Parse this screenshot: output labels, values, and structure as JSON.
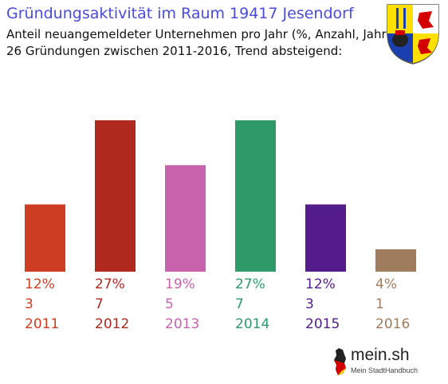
{
  "header": {
    "title": "Gründungsaktivität im Raum 19417 Jesendorf",
    "subtitle_line1": "Anteil neuangemeldeter Unternehmen pro Jahr (%, Anzahl, Jahr)",
    "subtitle_line2": "26 Gründungen zwischen 2011-2016, Trend absteigend:"
  },
  "crest": {
    "icon": "mecklenburg-vorpommern-coat-of-arms-icon",
    "colors": [
      "#1a3fae",
      "#ffe000",
      "#ffffff",
      "#d40000"
    ]
  },
  "chart_data": {
    "type": "bar",
    "categories": [
      "2011",
      "2012",
      "2013",
      "2014",
      "2015",
      "2016"
    ],
    "values": [
      12,
      27,
      19,
      27,
      12,
      4
    ],
    "percent_labels": [
      "12%",
      "27%",
      "19%",
      "27%",
      "12%",
      "4%"
    ],
    "counts": [
      "3",
      "7",
      "5",
      "7",
      "3",
      "1"
    ],
    "colors": [
      "#cc3d22",
      "#b0291f",
      "#c862ad",
      "#2e9a6a",
      "#531c8a",
      "#a07c5e"
    ],
    "unit": "%",
    "ylim": [
      0,
      27
    ],
    "grid": false,
    "legend": "none"
  },
  "logo": {
    "name": "mein.sh",
    "tagline": "Mein StadtHandbuch",
    "icon": "germany-map-icon"
  }
}
